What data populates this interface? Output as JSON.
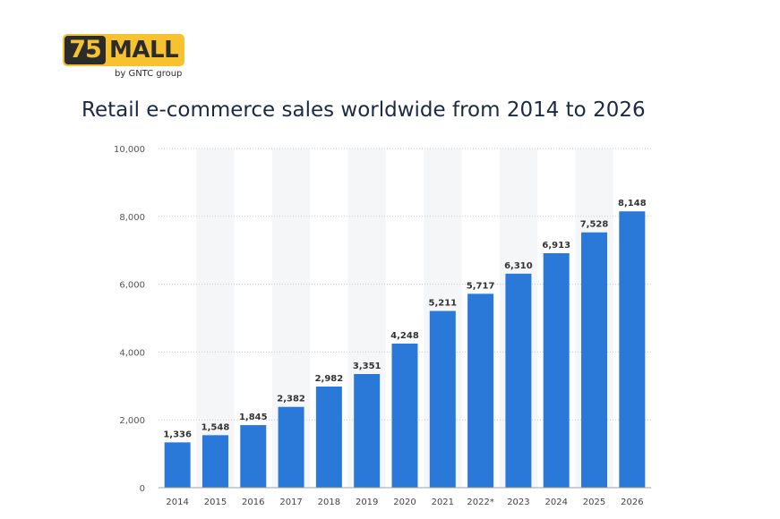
{
  "logo": {
    "number": "75",
    "word": "MALL",
    "subtitle": "by GNTC group"
  },
  "colors": {
    "bar": "#2a79d9",
    "stripe": "#f5f6f8",
    "grid": "#c9ccd1",
    "title": "#1b2a44",
    "logo_yellow": "#f6c22f"
  },
  "chart_data": {
    "type": "bar",
    "title": "Retail e-commerce sales worldwide from 2014 to 2026",
    "xlabel": "",
    "ylabel": "",
    "categories": [
      "2014",
      "2015",
      "2016",
      "2017",
      "2018",
      "2019",
      "2020",
      "2021",
      "2022*",
      "2023",
      "2024",
      "2025",
      "2026"
    ],
    "values": [
      1336,
      1548,
      1845,
      2382,
      2982,
      3351,
      4248,
      5211,
      5717,
      6310,
      6913,
      7528,
      8148
    ],
    "value_labels": [
      "1,336",
      "1,548",
      "1,845",
      "2,382",
      "2,982",
      "3,351",
      "4,248",
      "5,211",
      "5,717",
      "6,310",
      "6,913",
      "7,528",
      "8,148"
    ],
    "ylim": [
      0,
      10000
    ],
    "yticks": [
      0,
      2000,
      4000,
      6000,
      8000,
      10000
    ],
    "ytick_labels": [
      "0",
      "2,000",
      "4,000",
      "6,000",
      "8,000",
      "10,000"
    ],
    "grid": true,
    "legend": "none"
  }
}
